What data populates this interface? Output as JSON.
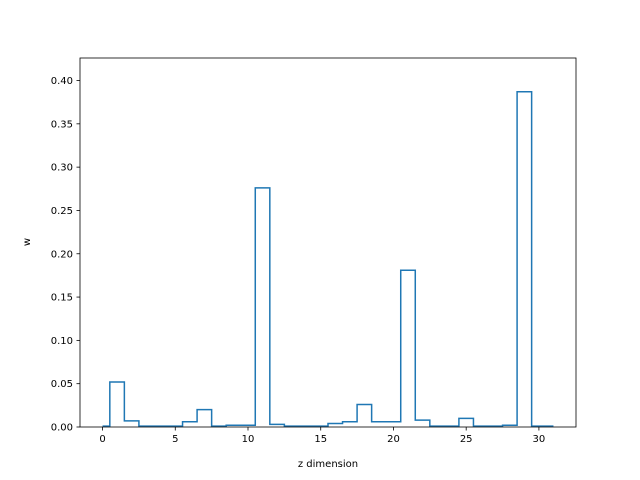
{
  "chart_data": {
    "type": "step",
    "title": "",
    "xlabel": "z dimension",
    "ylabel": "w",
    "xlim": [
      -1.55,
      32.55
    ],
    "ylim": [
      0,
      0.426
    ],
    "xticks": [
      0,
      5,
      10,
      15,
      20,
      25,
      30
    ],
    "yticks": [
      0.0,
      0.05,
      0.1,
      0.15,
      0.2,
      0.25,
      0.3,
      0.35,
      0.4
    ],
    "xtick_labels": [
      "0",
      "5",
      "10",
      "15",
      "20",
      "25",
      "30"
    ],
    "ytick_labels": [
      "0.00",
      "0.05",
      "0.10",
      "0.15",
      "0.20",
      "0.25",
      "0.30",
      "0.35",
      "0.40"
    ],
    "step_where": "mid",
    "grid": false,
    "series": [
      {
        "color": "#1f77b4",
        "x": [
          0,
          1,
          2,
          3,
          4,
          5,
          6,
          7,
          8,
          9,
          10,
          11,
          12,
          13,
          14,
          15,
          16,
          17,
          18,
          19,
          20,
          21,
          22,
          23,
          24,
          25,
          26,
          27,
          28,
          29,
          30,
          31
        ],
        "values": [
          0.001,
          0.052,
          0.007,
          0.001,
          0.001,
          0.001,
          0.006,
          0.02,
          0.001,
          0.002,
          0.002,
          0.276,
          0.003,
          0.001,
          0.001,
          0.001,
          0.004,
          0.006,
          0.026,
          0.006,
          0.006,
          0.181,
          0.008,
          0.001,
          0.001,
          0.01,
          0.001,
          0.001,
          0.002,
          0.387,
          0.001,
          0.001
        ]
      }
    ]
  }
}
